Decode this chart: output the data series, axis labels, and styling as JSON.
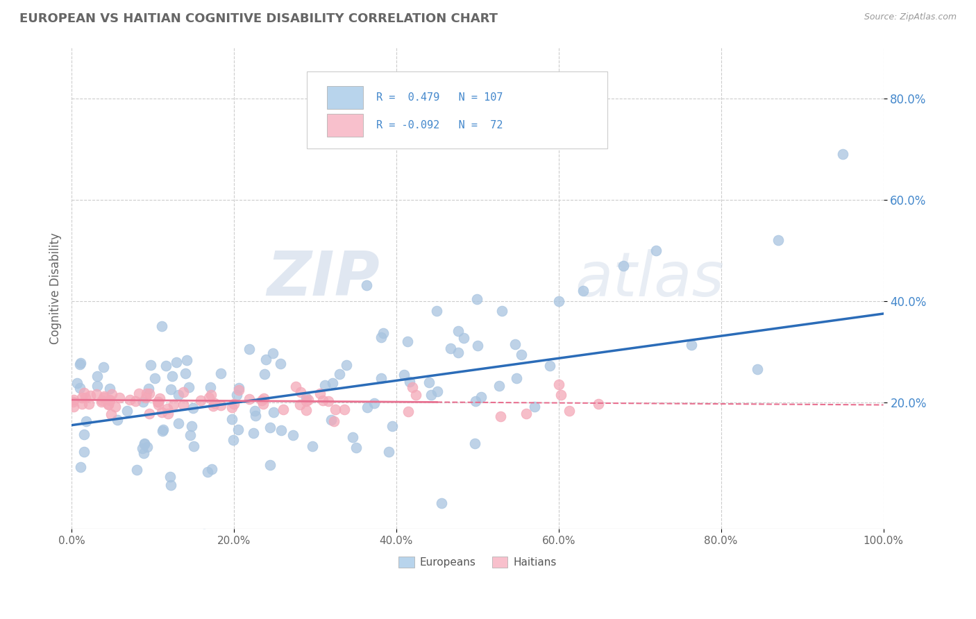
{
  "title": "EUROPEAN VS HAITIAN COGNITIVE DISABILITY CORRELATION CHART",
  "source": "Source: ZipAtlas.com",
  "ylabel": "Cognitive Disability",
  "xlim": [
    0.0,
    1.0
  ],
  "ylim": [
    -0.05,
    0.9
  ],
  "xtick_labels": [
    "0.0%",
    "20.0%",
    "40.0%",
    "60.0%",
    "80.0%",
    "100.0%"
  ],
  "xtick_vals": [
    0.0,
    0.2,
    0.4,
    0.6,
    0.8,
    1.0
  ],
  "ytick_labels": [
    "20.0%",
    "40.0%",
    "60.0%",
    "80.0%"
  ],
  "ytick_vals": [
    0.2,
    0.4,
    0.6,
    0.8
  ],
  "european_color": "#a8c4e0",
  "haitian_color": "#f4a8b8",
  "european_line_color": "#2b6cb8",
  "haitian_line_color": "#e87090",
  "legend_blue_face": "#b8d4ec",
  "legend_pink_face": "#f8c0cc",
  "R_european": 0.479,
  "N_european": 107,
  "R_haitian": -0.092,
  "N_haitian": 72,
  "watermark_zip": "ZIP",
  "watermark_atlas": "atlas",
  "background_color": "#ffffff",
  "grid_color": "#cccccc",
  "title_color": "#666666",
  "axis_tick_color": "#4488cc",
  "eu_intercept": 0.155,
  "eu_slope": 0.22,
  "ha_intercept": 0.205,
  "ha_slope": -0.01
}
